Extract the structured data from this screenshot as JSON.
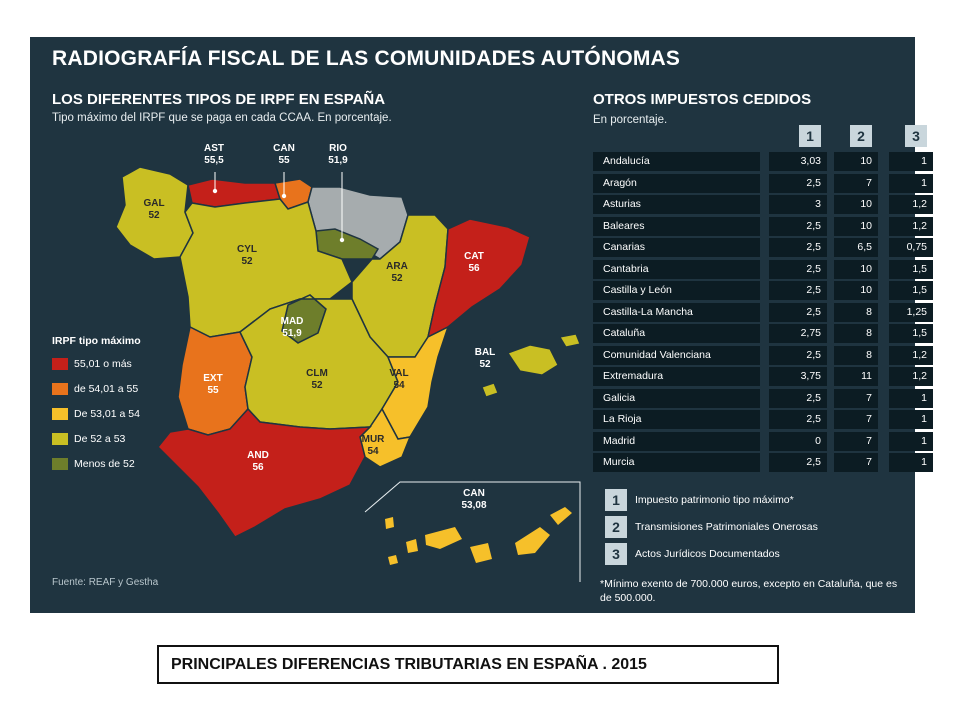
{
  "title": "RADIOGRAFÍA FISCAL DE LAS COMUNIDADES AUTÓNOMAS",
  "map_section": {
    "title": "LOS DIFERENTES TIPOS DE IRPF EN ESPAÑA",
    "subtitle": "Tipo máximo del IRPF que se paga en cada CCAA. En porcentaje."
  },
  "colors": {
    "panel_bg": "#1f3440",
    "cat_55_01_mas": "#c4201a",
    "cat_54_01_55": "#e8731c",
    "cat_53_01_54": "#f6c02a",
    "cat_52_53": "#c9bf23",
    "cat_menos_52": "#6e7e2b",
    "gray_region": "#a6acae",
    "sea_islands": "#f6c02a"
  },
  "regions": [
    {
      "code": "GAL",
      "value": "52"
    },
    {
      "code": "CYL",
      "value": "52"
    },
    {
      "code": "ARA",
      "value": "52"
    },
    {
      "code": "CAT",
      "value": "56"
    },
    {
      "code": "MAD",
      "value": "51,9"
    },
    {
      "code": "EXT",
      "value": "55"
    },
    {
      "code": "CLM",
      "value": "52"
    },
    {
      "code": "VAL",
      "value": "54"
    },
    {
      "code": "BAL",
      "value": "52"
    },
    {
      "code": "AND",
      "value": "56"
    },
    {
      "code": "MUR",
      "value": "54"
    },
    {
      "code": "CAN",
      "value": "53,08"
    }
  ],
  "pointer_regions": [
    {
      "code": "AST",
      "value": "55,5"
    },
    {
      "code": "CAN",
      "value": "55"
    },
    {
      "code": "RIO",
      "value": "51,9"
    }
  ],
  "legend": {
    "title": "IRPF tipo máximo",
    "items": [
      {
        "label": "55,01 o más",
        "color": "#c4201a"
      },
      {
        "label": "de 54,01 a 55",
        "color": "#e8731c"
      },
      {
        "label": "De 53,01 a 54",
        "color": "#f6c02a"
      },
      {
        "label": "De 52 a 53",
        "color": "#c9bf23"
      },
      {
        "label": "Menos de 52",
        "color": "#6e7e2b"
      }
    ]
  },
  "source": "Fuente: REAF y Gestha",
  "table_section": {
    "title": "OTROS IMPUESTOS CEDIDOS",
    "subtitle": "En porcentaje.",
    "columns": [
      "1",
      "2",
      "3"
    ],
    "rows": [
      {
        "name": "Andalucía",
        "values": [
          "3,03",
          "10",
          "1"
        ]
      },
      {
        "name": "Aragón",
        "values": [
          "2,5",
          "7",
          "1"
        ]
      },
      {
        "name": "Asturias",
        "values": [
          "3",
          "10",
          "1,2"
        ]
      },
      {
        "name": "Baleares",
        "values": [
          "2,5",
          "10",
          "1,2"
        ]
      },
      {
        "name": "Canarias",
        "values": [
          "2,5",
          "6,5",
          "0,75"
        ]
      },
      {
        "name": "Cantabria",
        "values": [
          "2,5",
          "10",
          "1,5"
        ]
      },
      {
        "name": "Castilla y León",
        "values": [
          "2,5",
          "10",
          "1,5"
        ]
      },
      {
        "name": "Castilla-La Mancha",
        "values": [
          "2,5",
          "8",
          "1,25"
        ]
      },
      {
        "name": "Cataluña",
        "values": [
          "2,75",
          "8",
          "1,5"
        ]
      },
      {
        "name": "Comunidad Valenciana",
        "values": [
          "2,5",
          "8",
          "1,2"
        ]
      },
      {
        "name": "Extremadura",
        "values": [
          "3,75",
          "11",
          "1,2"
        ]
      },
      {
        "name": "Galicia",
        "values": [
          "2,5",
          "7",
          "1"
        ]
      },
      {
        "name": "La Rioja",
        "values": [
          "2,5",
          "7",
          "1"
        ]
      },
      {
        "name": "Madrid",
        "values": [
          "0",
          "7",
          "1"
        ]
      },
      {
        "name": "Murcia",
        "values": [
          "2,5",
          "7",
          "1"
        ]
      }
    ],
    "key": [
      {
        "num": "1",
        "text": "Impuesto patrimonio tipo máximo*"
      },
      {
        "num": "2",
        "text": "Transmisiones Patrimoniales Onerosas"
      },
      {
        "num": "3",
        "text": "Actos Jurídicos Documentados"
      }
    ],
    "footnote": "*Mínimo exento de 700.000 euros, excepto en Cataluña, que es de 500.000."
  },
  "caption": "PRINCIPALES DIFERENCIAS TRIBUTARIAS EN ESPAÑA . 2015"
}
